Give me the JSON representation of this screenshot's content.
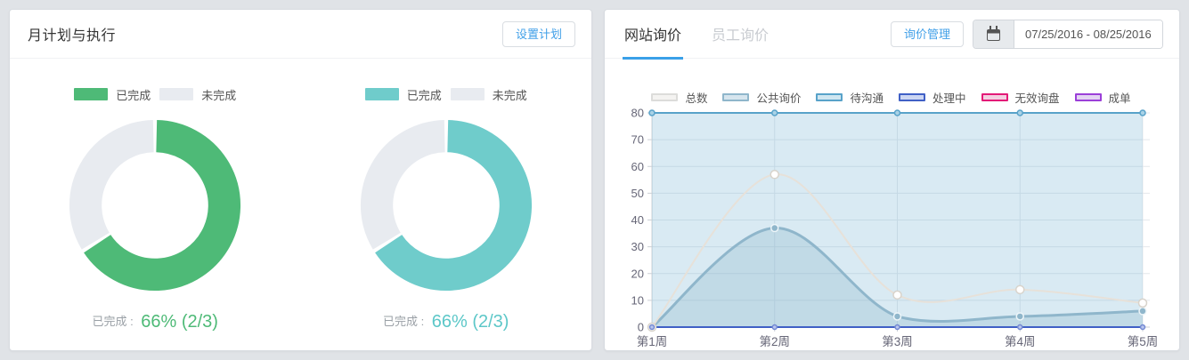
{
  "left_panel": {
    "title": "月计划与执行",
    "settings_button": "设置计划",
    "caption_prefix": "已完成 :",
    "legend_done": "已完成",
    "legend_undone": "未完成"
  },
  "right_panel": {
    "tabs": [
      "网站询价",
      "员工询价"
    ],
    "active_tab": 0,
    "manage_button": "询价管理",
    "date_range": "07/25/2016 - 08/25/2016"
  },
  "colors": {
    "accent_blue": "#42a0e8",
    "tab_underline": "#3aa0e8",
    "plan_green": "#4eba77",
    "plan_teal": "#6fcccb",
    "plan_rest_gray": "#e8ebf0"
  },
  "chart_data": [
    {
      "type": "pie",
      "title": "月计划与执行(绿)",
      "labels": [
        "已完成",
        "未完成"
      ],
      "values": [
        66,
        34
      ],
      "colors": [
        "#4eba77",
        "#e8ebf0"
      ],
      "caption_value": "66% (2/3)",
      "caption_color": "#4eba77",
      "donut": true
    },
    {
      "type": "pie",
      "title": "月计划与执行(青)",
      "labels": [
        "已完成",
        "未完成"
      ],
      "values": [
        66,
        34
      ],
      "colors": [
        "#6fcccb",
        "#e8ebf0"
      ],
      "caption_value": "66% (2/3)",
      "caption_color": "#5cc7c8",
      "donut": true
    },
    {
      "type": "line",
      "title": "网站询价",
      "categories": [
        "第1周",
        "第2周",
        "第3周",
        "第4周",
        "第5周"
      ],
      "ylim": [
        0,
        80
      ],
      "ytick_step": 10,
      "grid": true,
      "legend_position": "top-center",
      "smooth": true,
      "series": [
        {
          "name": "总数",
          "values": [
            0,
            57,
            12,
            14,
            9
          ],
          "line": "#e7e1d9",
          "fill": "none",
          "legend_fill": "#f4f3f1",
          "marker": {
            "r": 4.5,
            "fill": "#ffffff",
            "stroke": "#d8d3cb"
          }
        },
        {
          "name": "公共询价",
          "values": [
            0,
            37,
            4,
            4,
            6
          ],
          "line": "#8fb6cb",
          "fill": "rgba(143,182,203,0.32)",
          "legend_fill": "#d6e5ee",
          "marker": {
            "r": 4,
            "fill": "#8fb6cb",
            "stroke": "#edf5f9"
          }
        },
        {
          "name": "待沟通",
          "values": [
            80,
            80,
            80,
            80,
            80
          ],
          "line": "#58a2c9",
          "fill": "rgba(120,180,212,0.28)",
          "legend_fill": "#cfe6f1",
          "marker": {
            "r": 3,
            "fill": "#a9d2e6",
            "stroke": "#58a2c9"
          }
        },
        {
          "name": "处理中",
          "values": [
            0,
            0,
            0,
            0,
            0
          ],
          "line": "#4060c6",
          "fill": "none",
          "legend_fill": "#ccd6f3",
          "marker": {
            "r": 2.5,
            "fill": "#b9c6ee",
            "stroke": "#7288d2"
          }
        },
        {
          "name": "无效询盘",
          "values": [
            0,
            0,
            0,
            0,
            0
          ],
          "line": "#e31a77",
          "fill": "none",
          "legend_fill": "#f3cfe1",
          "marker": null
        },
        {
          "name": "成单",
          "values": [
            0,
            0,
            0,
            0,
            0
          ],
          "line": "#9b3fd8",
          "fill": "none",
          "legend_fill": "#e3d3f3",
          "marker": null
        }
      ]
    }
  ]
}
